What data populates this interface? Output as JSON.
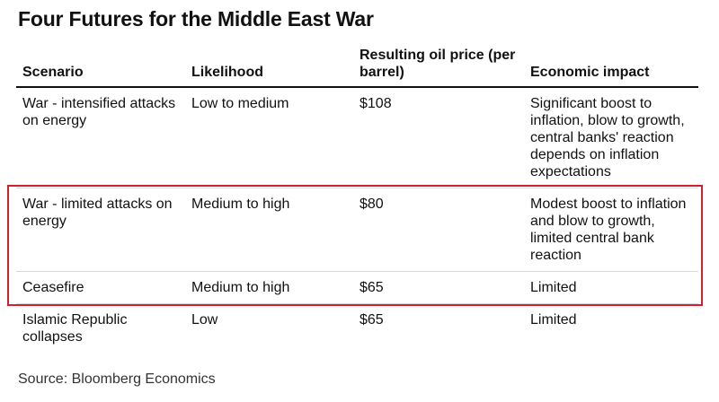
{
  "title": "Four Futures for the Middle East War",
  "table": {
    "header": [
      "Scenario",
      "Likelihood",
      "Resulting oil price (per barrel)",
      "Economic impact"
    ],
    "rows": [
      [
        "War - intensified attacks on energy",
        "Low to medium",
        "$108",
        "Significant boost to inflation, blow to growth, central banks' reaction depends on inflation expectations"
      ],
      [
        "War - limited attacks on energy",
        "Medium to high",
        "$80",
        "Modest boost to inflation and blow to growth, limited central bank reaction"
      ],
      [
        "Ceasefire",
        "Medium to high",
        "$65",
        "Limited"
      ],
      [
        "Islamic Republic collapses",
        "Low",
        "$65",
        "Limited"
      ]
    ]
  },
  "source": "Source: Bloomberg Economics"
}
